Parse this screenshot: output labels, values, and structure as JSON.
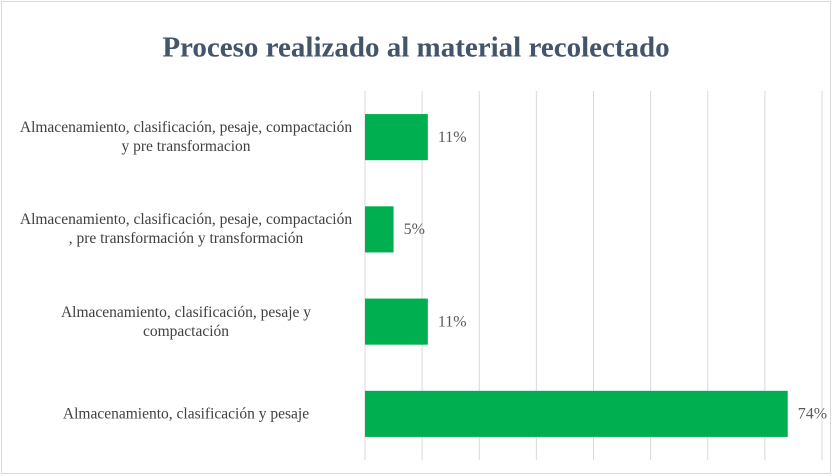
{
  "chart_data": {
    "type": "bar",
    "orientation": "horizontal",
    "title": "Proceso  realizado al material recolectado",
    "categories": [
      "Almacenamiento, clasificación, pesaje, compactación y pre transformacion",
      "Almacenamiento, clasificación, pesaje, compactación , pre transformación y transformación",
      "Almacenamiento, clasificación, pesaje y compactación",
      "Almacenamiento, clasificación y pesaje"
    ],
    "values": [
      11,
      5,
      11,
      74
    ],
    "value_labels": [
      "11%",
      "5%",
      "11%",
      "74%"
    ],
    "color": "#00b050",
    "xlim": [
      0,
      80
    ],
    "xticks": [
      0,
      10,
      20,
      30,
      40,
      50,
      60,
      70,
      80
    ],
    "grid": true
  }
}
